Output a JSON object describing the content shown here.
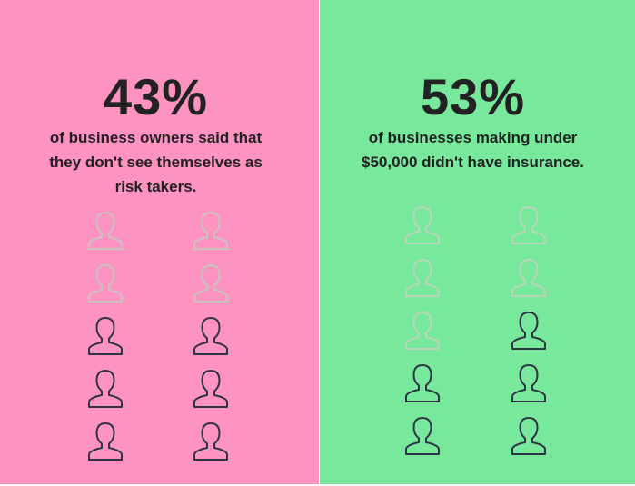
{
  "panels": [
    {
      "stat": "43%",
      "caption": [
        "of business owners said that",
        "they don't see themselves as",
        "risk takers."
      ]
    },
    {
      "stat": "53%",
      "caption": [
        "of businesses making under",
        "$50,000 didn't have insurance."
      ]
    }
  ]
}
